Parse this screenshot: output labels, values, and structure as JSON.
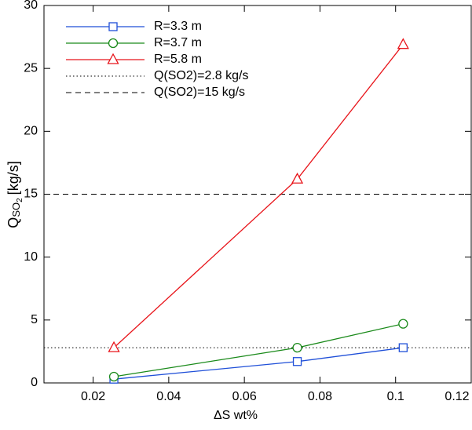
{
  "chart_data": {
    "type": "line",
    "xlabel": "ΔS wt%",
    "ylabel": {
      "main": "Q",
      "sub": "SO",
      "subsub": "2",
      "unit": "[kg/s]"
    },
    "x": [
      0.0255,
      0.074,
      0.102
    ],
    "series": [
      {
        "name": "R=3.3 m",
        "color": "#1f4fd8",
        "marker": "square",
        "values": [
          0.3,
          1.7,
          2.8
        ]
      },
      {
        "name": "R=3.7 m",
        "color": "#1a8a1a",
        "marker": "circle",
        "values": [
          0.5,
          2.8,
          4.7
        ]
      },
      {
        "name": "R=5.8 m",
        "color": "#e8141a",
        "marker": "triangle",
        "values": [
          2.8,
          16.2,
          26.9
        ]
      }
    ],
    "hlines": [
      {
        "name": "Q(SO2)=2.8 kg/s",
        "value": 2.8,
        "dash": "dotted"
      },
      {
        "name": "Q(SO2)=15 kg/s",
        "value": 15,
        "dash": "dashed"
      }
    ],
    "xlim": [
      0.007,
      0.12
    ],
    "xticks": [
      0.02,
      0.04,
      0.06,
      0.08,
      0.1,
      0.12
    ],
    "ylim": [
      0,
      30
    ],
    "yticks": [
      0,
      5,
      10,
      15,
      20,
      25,
      30
    ],
    "legend": "upper-left"
  }
}
